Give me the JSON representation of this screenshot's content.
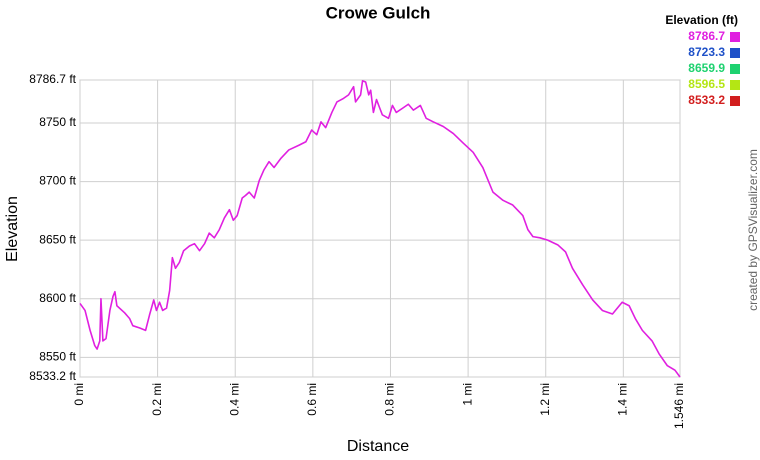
{
  "chart_data": {
    "type": "line",
    "title": "Crowe Gulch",
    "x_label": "Distance",
    "y_label": "Elevation",
    "credit": "created by GPSVisualizer.com",
    "legend_title": "Elevation (ft)",
    "color_scale": [
      {
        "value": 8786.7,
        "color": "#e020e0"
      },
      {
        "value": 8723.3,
        "color": "#1e50c8"
      },
      {
        "value": 8659.9,
        "color": "#1ed270"
      },
      {
        "value": 8596.5,
        "color": "#b4e614"
      },
      {
        "value": 8533.2,
        "color": "#d21e1e"
      }
    ],
    "grid": true,
    "xlim": [
      0,
      1.546
    ],
    "ylim": [
      8533.2,
      8786.7
    ],
    "xticks": [
      {
        "value": 0,
        "label": "0 mi"
      },
      {
        "value": 0.2,
        "label": "0.2 mi"
      },
      {
        "value": 0.4,
        "label": "0.4 mi"
      },
      {
        "value": 0.6,
        "label": "0.6 mi"
      },
      {
        "value": 0.8,
        "label": "0.8 mi"
      },
      {
        "value": 1,
        "label": "1 mi"
      },
      {
        "value": 1.2,
        "label": "1.2 mi"
      },
      {
        "value": 1.4,
        "label": "1.4 mi"
      },
      {
        "value": 1.546,
        "label": "1.546 mi"
      }
    ],
    "yticks": [
      {
        "value": 8533.2,
        "label": "8533.2 ft"
      },
      {
        "value": 8550,
        "label": "8550 ft"
      },
      {
        "value": 8600,
        "label": "8600 ft"
      },
      {
        "value": 8650,
        "label": "8650 ft"
      },
      {
        "value": 8700,
        "label": "8700 ft"
      },
      {
        "value": 8750,
        "label": "8750 ft"
      },
      {
        "value": 8786.7,
        "label": "8786.7 ft"
      }
    ],
    "series": [
      {
        "name": "Elevation",
        "x": [
          0,
          0.013,
          0.026,
          0.038,
          0.044,
          0.051,
          0.054,
          0.059,
          0.067,
          0.077,
          0.085,
          0.09,
          0.095,
          0.115,
          0.128,
          0.136,
          0.154,
          0.169,
          0.179,
          0.19,
          0.197,
          0.205,
          0.213,
          0.223,
          0.231,
          0.238,
          0.246,
          0.256,
          0.267,
          0.282,
          0.295,
          0.308,
          0.321,
          0.333,
          0.346,
          0.359,
          0.372,
          0.385,
          0.395,
          0.405,
          0.418,
          0.426,
          0.436,
          0.449,
          0.462,
          0.474,
          0.487,
          0.5,
          0.518,
          0.538,
          0.564,
          0.582,
          0.597,
          0.61,
          0.621,
          0.633,
          0.649,
          0.662,
          0.679,
          0.692,
          0.705,
          0.71,
          0.723,
          0.728,
          0.736,
          0.744,
          0.749,
          0.756,
          0.764,
          0.772,
          0.779,
          0.795,
          0.805,
          0.815,
          0.833,
          0.846,
          0.859,
          0.877,
          0.892,
          0.91,
          0.936,
          0.962,
          0.987,
          1.013,
          1.038,
          1.064,
          1.09,
          1.115,
          1.141,
          1.154,
          1.167,
          1.185,
          1.205,
          1.231,
          1.251,
          1.269,
          1.295,
          1.321,
          1.346,
          1.372,
          1.397,
          1.415,
          1.431,
          1.449,
          1.474,
          1.492,
          1.513,
          1.533,
          1.546
        ],
        "values": [
          8596,
          8590,
          8573,
          8560,
          8557,
          8564,
          8600,
          8564,
          8566,
          8590,
          8602,
          8606,
          8594,
          8588,
          8583,
          8577,
          8575,
          8573,
          8586,
          8599,
          8590,
          8597,
          8590,
          8592,
          8607,
          8635,
          8626,
          8631,
          8641,
          8645,
          8647,
          8641,
          8647,
          8656,
          8652,
          8659,
          8669,
          8676,
          8667,
          8671,
          8686,
          8688,
          8691,
          8686,
          8701,
          8710,
          8717,
          8712,
          8720,
          8727,
          8731,
          8734,
          8744,
          8740,
          8751,
          8746,
          8759,
          8768,
          8771,
          8774,
          8781,
          8768,
          8774,
          8786,
          8785,
          8774,
          8778,
          8759,
          8770,
          8763,
          8757,
          8754,
          8765,
          8759,
          8763,
          8766,
          8761,
          8765,
          8754,
          8751,
          8747,
          8741,
          8733,
          8725,
          8712,
          8691,
          8684,
          8680,
          8671,
          8659,
          8653,
          8652,
          8650,
          8646,
          8640,
          8626,
          8612,
          8599,
          8590,
          8587,
          8597,
          8594,
          8583,
          8573,
          8564,
          8553,
          8543,
          8539,
          8533.2
        ]
      }
    ]
  }
}
